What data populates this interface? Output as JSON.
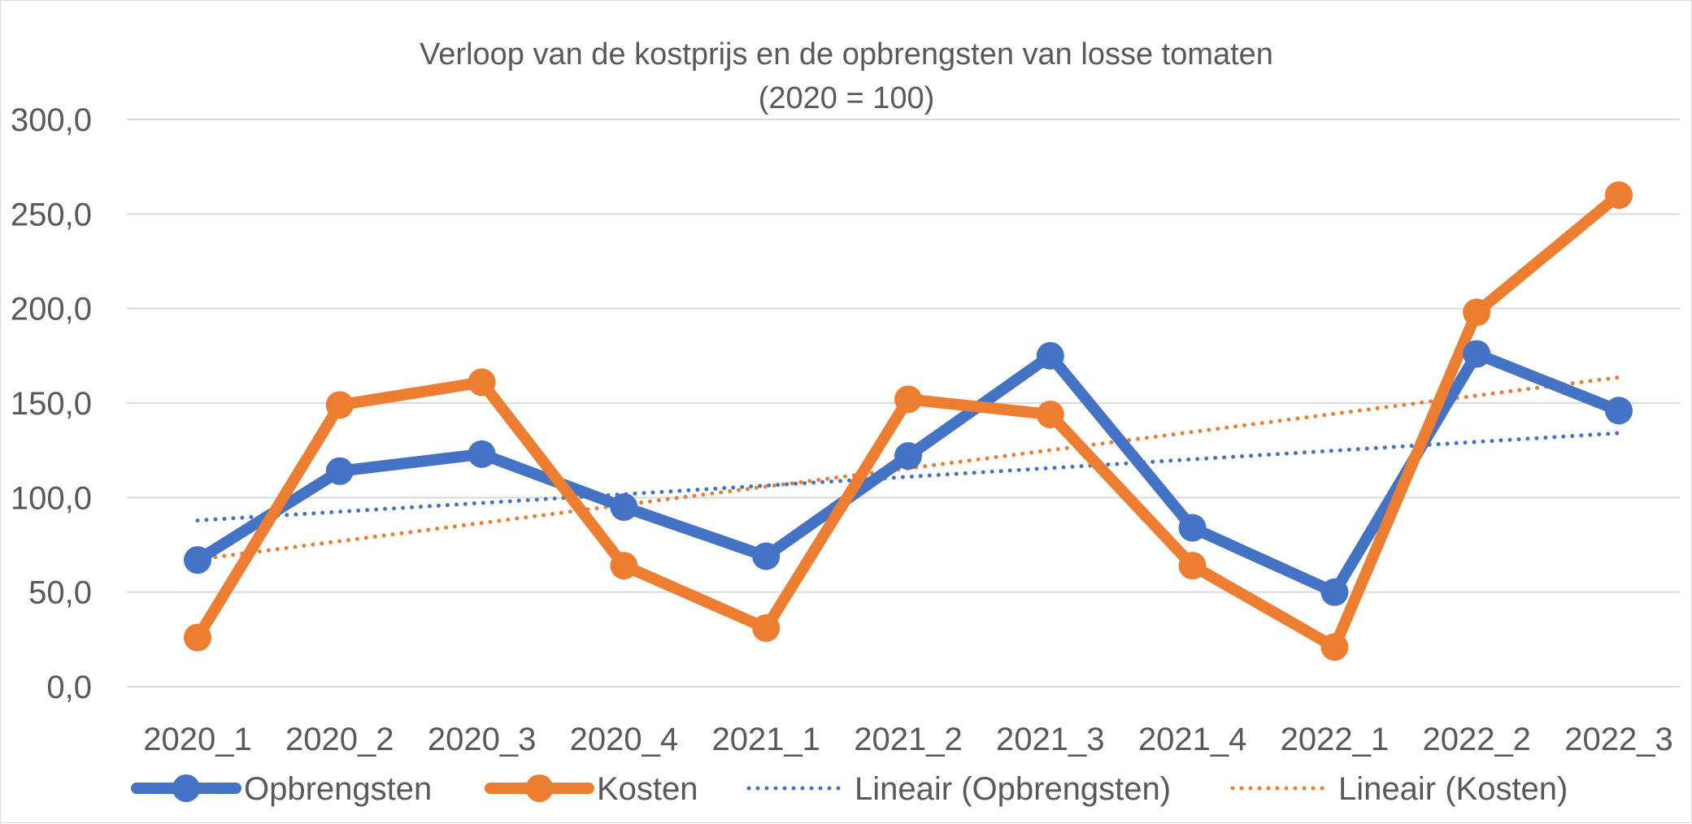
{
  "chart_data": {
    "type": "line",
    "title": "Verloop van de kostprijs en de opbrengsten van losse tomaten",
    "subtitle": "(2020 = 100)",
    "xlabel": "",
    "ylabel": "",
    "ylim": [
      0,
      300
    ],
    "ytick_step": 50,
    "ytick_labels": [
      "0,0",
      "50,0",
      "100,0",
      "150,0",
      "200,0",
      "250,0",
      "300,0"
    ],
    "grid": true,
    "legend_position": "bottom",
    "categories": [
      "2020_1",
      "2020_2",
      "2020_3",
      "2020_4",
      "2021_1",
      "2021_2",
      "2021_3",
      "2021_4",
      "2022_1",
      "2022_2",
      "2022_3"
    ],
    "series": [
      {
        "name": "Opbrengsten",
        "color": "#4472c4",
        "values": [
          67,
          114,
          123,
          95,
          69,
          122,
          175,
          84,
          50,
          176,
          146
        ]
      },
      {
        "name": "Kosten",
        "color": "#ed7d31",
        "values": [
          26,
          149,
          161,
          64,
          31,
          152,
          144,
          64,
          21,
          198,
          260
        ]
      }
    ],
    "trendlines": [
      {
        "name": "Lineair (Opbrengsten)",
        "of": "Opbrengsten",
        "color": "#4472c4",
        "style": "dotted"
      },
      {
        "name": "Lineair (Kosten)",
        "of": "Kosten",
        "color": "#ed7d31",
        "style": "dotted"
      }
    ]
  }
}
